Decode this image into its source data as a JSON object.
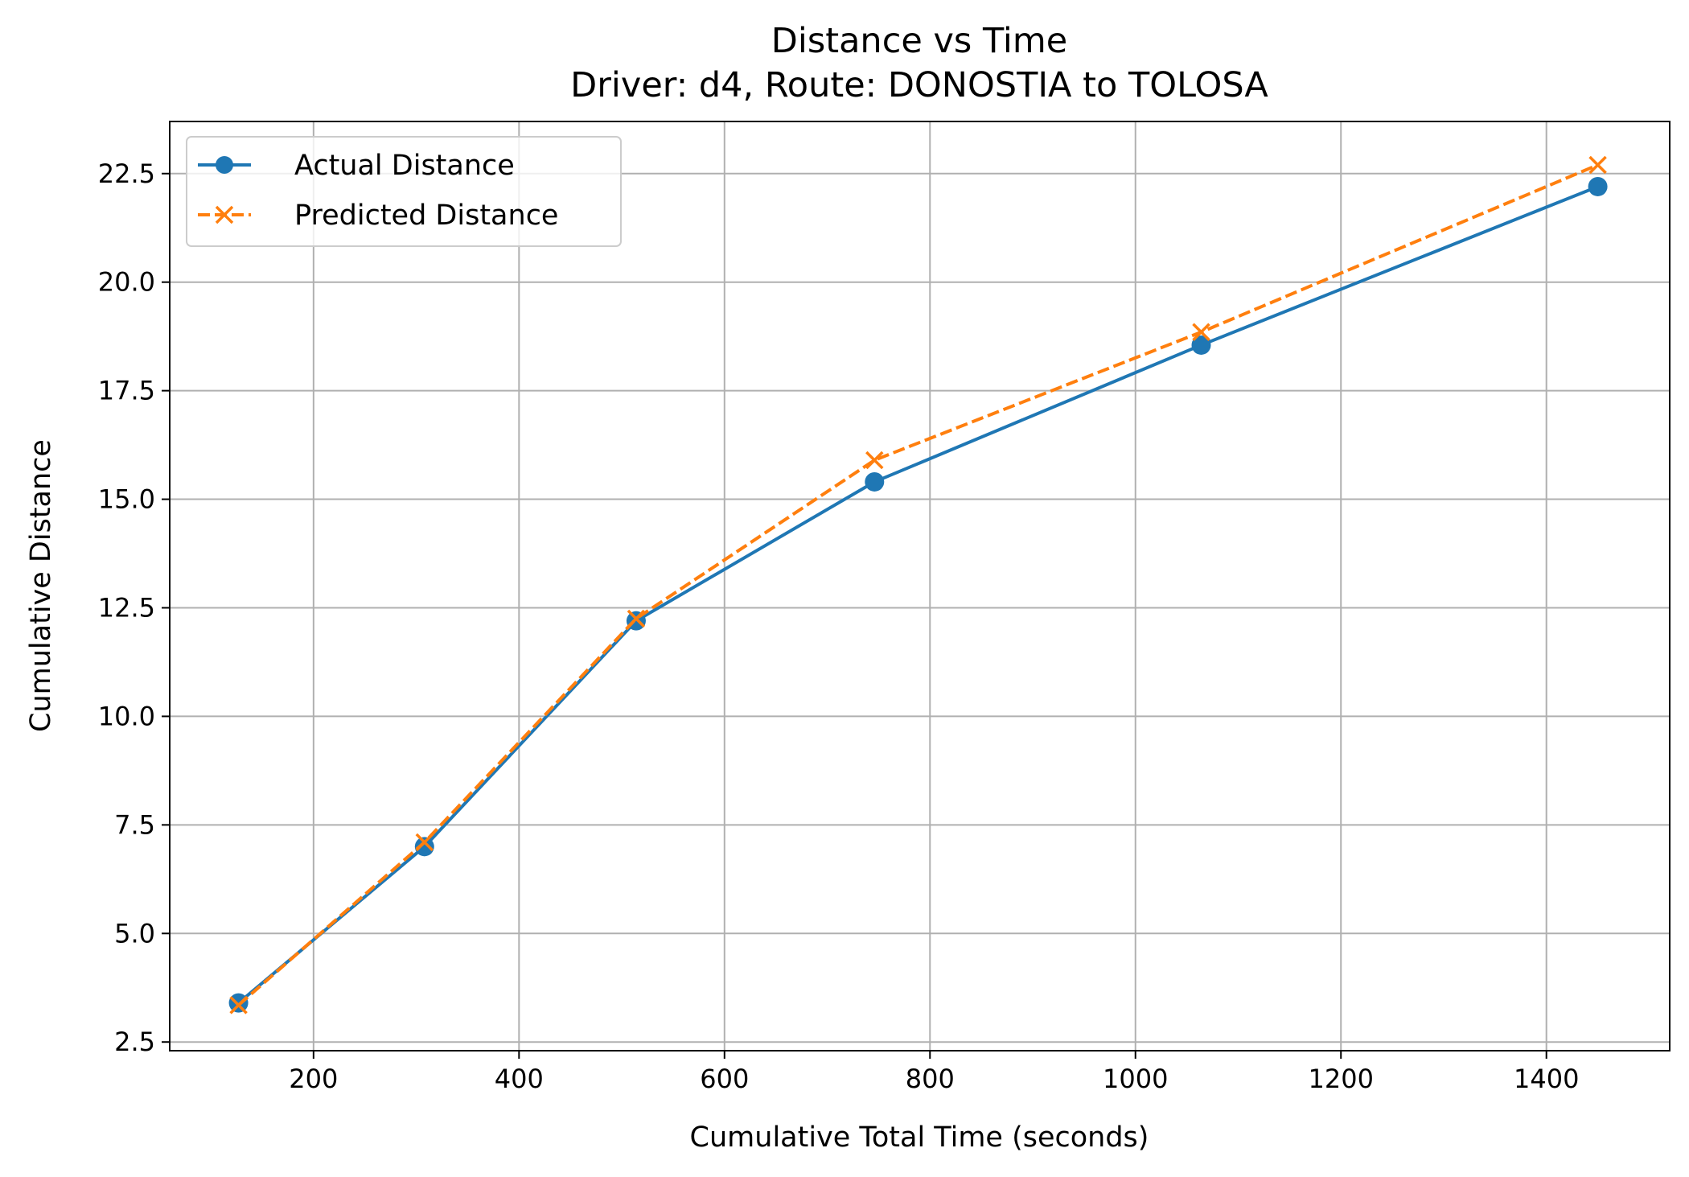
{
  "chart_data": {
    "type": "line",
    "title": "Distance vs Time",
    "subtitle": "Driver: d4, Route: DONOSTIA to TOLOSA",
    "xlabel": "Cumulative Total Time (seconds)",
    "ylabel": "Cumulative Distance",
    "xlim": [
      60,
      1520
    ],
    "ylim": [
      2.3,
      23.7
    ],
    "xticks": [
      200,
      400,
      600,
      800,
      1000,
      1200,
      1400
    ],
    "yticks": [
      2.5,
      5.0,
      7.5,
      10.0,
      12.5,
      15.0,
      17.5,
      20.0,
      22.5
    ],
    "grid": true,
    "legend_position": "top-left",
    "series": [
      {
        "name": "Actual Distance",
        "color": "#1f77b4",
        "line_style": "solid",
        "marker": "circle",
        "x": [
          127,
          308,
          514,
          746,
          1064,
          1450
        ],
        "y": [
          3.4,
          7.0,
          12.2,
          15.4,
          18.55,
          22.2
        ]
      },
      {
        "name": "Predicted Distance",
        "color": "#ff7f0e",
        "line_style": "dashed",
        "marker": "x",
        "x": [
          127,
          308,
          514,
          746,
          1064,
          1450
        ],
        "y": [
          3.35,
          7.1,
          12.25,
          15.9,
          18.85,
          22.7
        ]
      }
    ]
  }
}
